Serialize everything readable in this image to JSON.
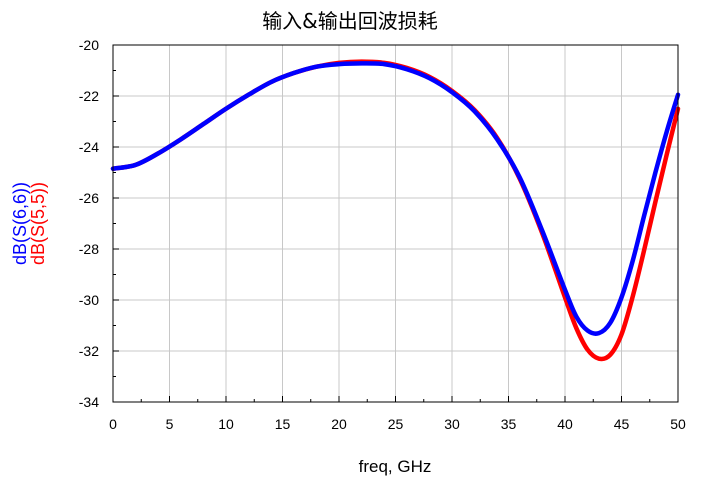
{
  "chart_data": {
    "type": "line",
    "title": "输入&输出回波损耗",
    "xlabel": "freq, GHz",
    "xlim": [
      0,
      50
    ],
    "ylim": [
      -34,
      -20
    ],
    "xticks": [
      0,
      5,
      10,
      15,
      20,
      25,
      30,
      35,
      40,
      45,
      50
    ],
    "yticks": [
      -34,
      -32,
      -30,
      -28,
      -26,
      -24,
      -22,
      -20
    ],
    "grid": true,
    "series": [
      {
        "name": "dB(S(5,5))",
        "color": "#ff0000",
        "x": [
          0,
          2,
          4,
          6,
          8,
          10,
          12,
          14,
          16,
          18,
          20,
          22,
          24,
          26,
          28,
          30,
          32,
          34,
          36,
          38,
          40,
          41,
          42,
          43,
          44,
          45,
          46,
          47,
          48,
          49,
          50
        ],
        "y": [
          -24.85,
          -24.7,
          -24.25,
          -23.7,
          -23.1,
          -22.5,
          -21.95,
          -21.45,
          -21.1,
          -20.85,
          -20.7,
          -20.65,
          -20.7,
          -20.9,
          -21.25,
          -21.8,
          -22.55,
          -23.65,
          -25.25,
          -27.4,
          -29.9,
          -31.1,
          -31.95,
          -32.3,
          -32.15,
          -31.35,
          -29.85,
          -28.05,
          -26.15,
          -24.3,
          -22.5
        ]
      },
      {
        "name": "dB(S(6,6))",
        "color": "#0000ff",
        "x": [
          0,
          2,
          4,
          6,
          8,
          10,
          12,
          14,
          16,
          18,
          20,
          22,
          24,
          26,
          28,
          30,
          32,
          34,
          36,
          38,
          40,
          41,
          42,
          43,
          44,
          45,
          46,
          47,
          48,
          49,
          50
        ],
        "y": [
          -24.85,
          -24.7,
          -24.25,
          -23.7,
          -23.1,
          -22.5,
          -21.95,
          -21.45,
          -21.1,
          -20.85,
          -20.75,
          -20.72,
          -20.75,
          -20.95,
          -21.3,
          -21.85,
          -22.6,
          -23.7,
          -25.2,
          -27.3,
          -29.6,
          -30.65,
          -31.2,
          -31.3,
          -30.9,
          -29.9,
          -28.45,
          -26.7,
          -25.0,
          -23.4,
          -21.95
        ]
      }
    ]
  }
}
